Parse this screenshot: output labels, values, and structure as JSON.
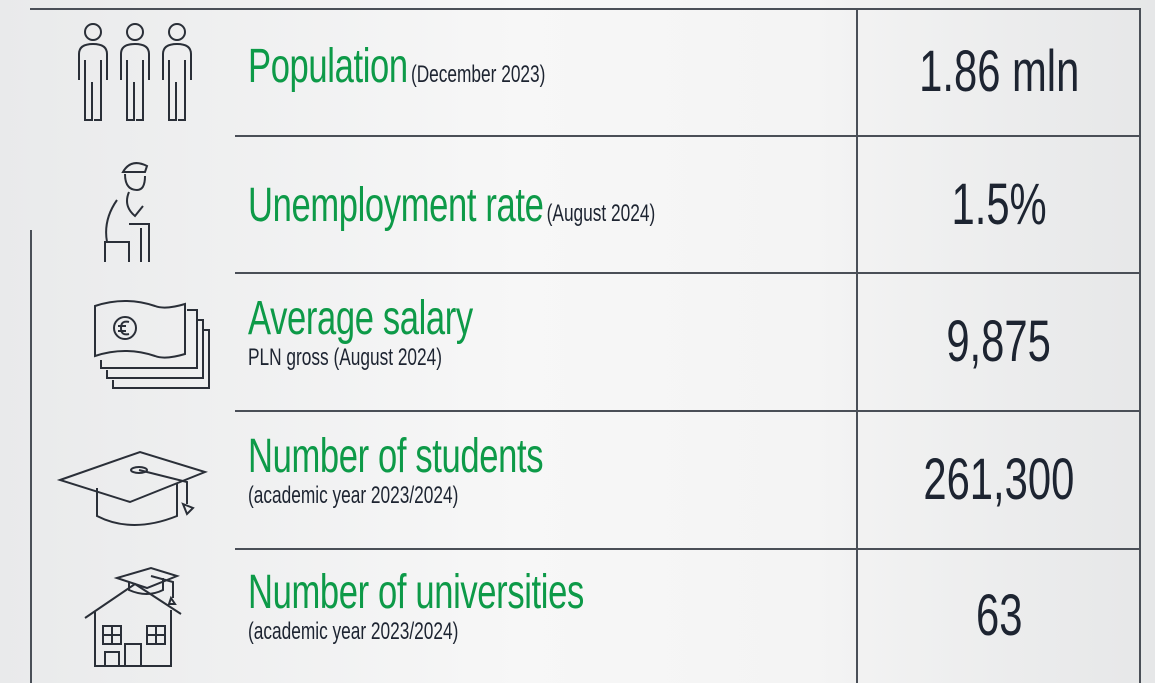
{
  "rows": [
    {
      "label": "Population",
      "note": "(December 2023)",
      "value": "1.86 mln"
    },
    {
      "label": "Unemployment rate",
      "note": "(August 2024)",
      "value": "1.5%"
    },
    {
      "label": "Average salary",
      "note": "PLN gross (August 2024)",
      "value": "9,875"
    },
    {
      "label": "Number of students",
      "note": "(academic year 2023/2024)",
      "value": "261,300"
    },
    {
      "label": "Number of universities",
      "note": "(academic year 2023/2024)",
      "value": "63"
    }
  ]
}
